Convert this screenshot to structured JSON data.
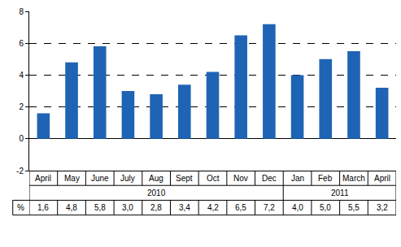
{
  "chart_data": {
    "type": "bar",
    "categories": [
      "April",
      "May",
      "June",
      "July",
      "Aug",
      "Sept",
      "Oct",
      "Nov",
      "Dec",
      "Jan",
      "Feb",
      "March",
      "April"
    ],
    "years": [
      {
        "label": "2010",
        "span": 9
      },
      {
        "label": "2011",
        "span": 4
      }
    ],
    "values": [
      1.6,
      4.8,
      5.8,
      3.0,
      2.8,
      3.4,
      4.2,
      6.5,
      7.2,
      4.0,
      5.0,
      5.5,
      3.2
    ],
    "value_labels_title": "%",
    "value_labels": [
      "1,6",
      "4,8",
      "5,8",
      "3,0",
      "2,8",
      "3,4",
      "4,2",
      "6,5",
      "7,2",
      "4,0",
      "5,0",
      "5,5",
      "3,2"
    ],
    "data_labels": true,
    "color": "#1f64b4",
    "ylim": [
      -2,
      8
    ],
    "yticks": [
      -2,
      0,
      2,
      4,
      6,
      8
    ],
    "grid": true
  }
}
